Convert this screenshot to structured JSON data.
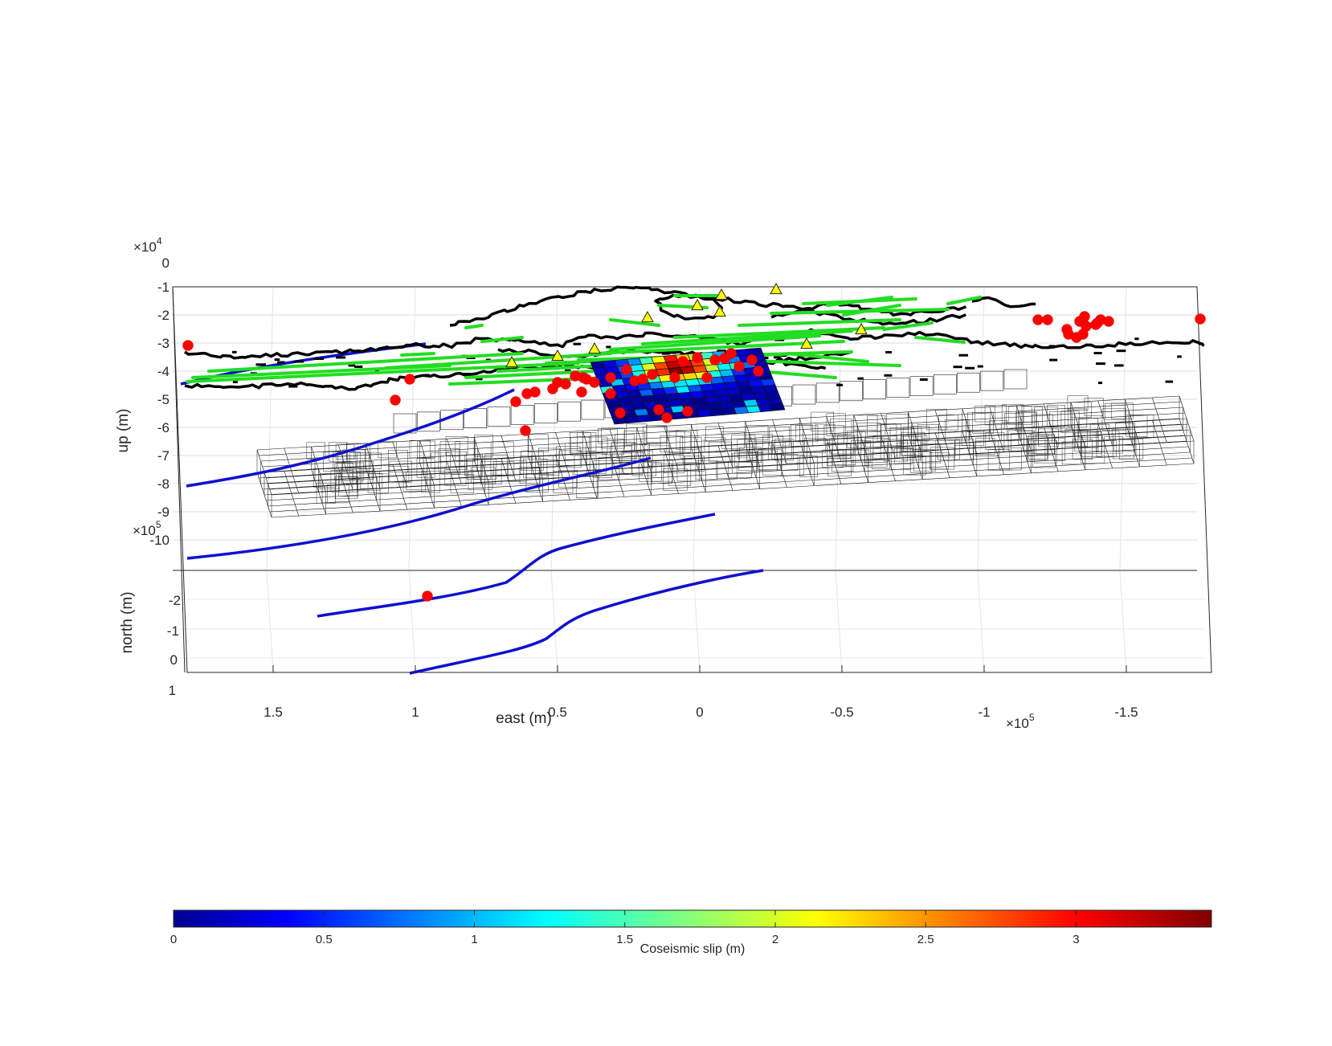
{
  "chart_data": {
    "type": "3d-scatter-mesh",
    "title": "",
    "axes": {
      "up": {
        "label": "up (m)",
        "exponent_base": "×10",
        "exponent": "4",
        "ticks": [
          "0",
          "-1",
          "-2",
          "-3",
          "-4",
          "-5",
          "-6",
          "-7",
          "-8",
          "-9",
          "-10"
        ],
        "range": [
          -100000,
          0
        ]
      },
      "north": {
        "label": "north (m)",
        "exponent_base": "×10",
        "exponent": "5",
        "ticks": [
          "-2",
          "-1",
          "0",
          "1"
        ],
        "range": [
          -250000,
          100000
        ]
      },
      "east": {
        "label": "east (m)",
        "exponent_base": "×10",
        "exponent": "5",
        "ticks": [
          "1.5",
          "1",
          "0.5",
          "0",
          "-0.5",
          "-1",
          "-1.5"
        ],
        "range": [
          -180000,
          180000
        ],
        "reversed": true
      }
    },
    "grid": true,
    "colorbar": {
      "label": "Coseismic slip (m)",
      "ticks": [
        "0",
        "0.5",
        "1",
        "1.5",
        "2",
        "2.5",
        "3"
      ],
      "range": [
        0,
        3.45
      ],
      "colormap": "jet",
      "placement": "bottom"
    },
    "series": [
      {
        "kind": "epicenters",
        "color": "#ff0000",
        "marker": "circle"
      },
      {
        "kind": "stations",
        "color": "#ffff00",
        "marker": "triangle"
      },
      {
        "kind": "fault-traces",
        "color": "#22dd22"
      },
      {
        "kind": "coastline",
        "color": "#000000"
      },
      {
        "kind": "slab-contours",
        "color": "#1010d0"
      },
      {
        "kind": "model-mesh",
        "color": "#000000"
      },
      {
        "kind": "slip-patches",
        "colormap": "jet"
      }
    ]
  }
}
